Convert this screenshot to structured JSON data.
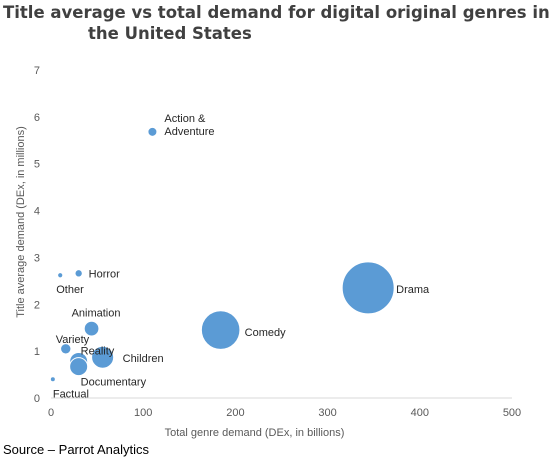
{
  "title_line1": "Title average vs total demand for digital original genres in",
  "title_line2": "the United States",
  "source": "Source – Parrot Analytics",
  "colors": {
    "bubble": "#5b9bd5",
    "bubble_stroke": "#ffffff",
    "text": "#404040",
    "axis": "#d9d9d9"
  },
  "chart_data": {
    "type": "scatter",
    "title": "Title average vs total demand for digital original genres in the United States",
    "xlabel": "Total genre demand (DEx, in billions)",
    "ylabel": "Title average demand (DEx, in millions)",
    "xlim": [
      0,
      500
    ],
    "ylim": [
      0,
      7
    ],
    "xticks": [
      0,
      100,
      200,
      300,
      400,
      500
    ],
    "yticks": [
      0,
      1,
      2,
      3,
      4,
      5,
      6,
      7
    ],
    "grid": false,
    "points": [
      {
        "name": "Action & Adventure",
        "label_lines": [
          "Action &",
          "Adventure"
        ],
        "x": 110,
        "y": 5.68,
        "size": 3
      },
      {
        "name": "Horror",
        "label_lines": [
          "Horror"
        ],
        "x": 30,
        "y": 2.66,
        "size": 2
      },
      {
        "name": "Other",
        "label_lines": [
          "Other"
        ],
        "x": 10,
        "y": 2.62,
        "size": 1
      },
      {
        "name": "Drama",
        "label_lines": [
          "Drama"
        ],
        "x": 344,
        "y": 2.35,
        "size": 100
      },
      {
        "name": "Comedy",
        "label_lines": [
          "Comedy"
        ],
        "x": 184,
        "y": 1.45,
        "size": 55
      },
      {
        "name": "Animation",
        "label_lines": [
          "Animation"
        ],
        "x": 44,
        "y": 1.48,
        "size": 8
      },
      {
        "name": "Variety",
        "label_lines": [
          "Variety"
        ],
        "x": 16,
        "y": 1.05,
        "size": 4
      },
      {
        "name": "Reality",
        "label_lines": [
          "Reality"
        ],
        "x": 30,
        "y": 0.78,
        "size": 12
      },
      {
        "name": "Children",
        "label_lines": [
          "Children"
        ],
        "x": 56,
        "y": 0.87,
        "size": 18
      },
      {
        "name": "Documentary",
        "label_lines": [
          "Documentary"
        ],
        "x": 30,
        "y": 0.67,
        "size": 12
      },
      {
        "name": "Factual",
        "label_lines": [
          "Factual"
        ],
        "x": 2,
        "y": 0.4,
        "size": 0.6
      }
    ]
  }
}
